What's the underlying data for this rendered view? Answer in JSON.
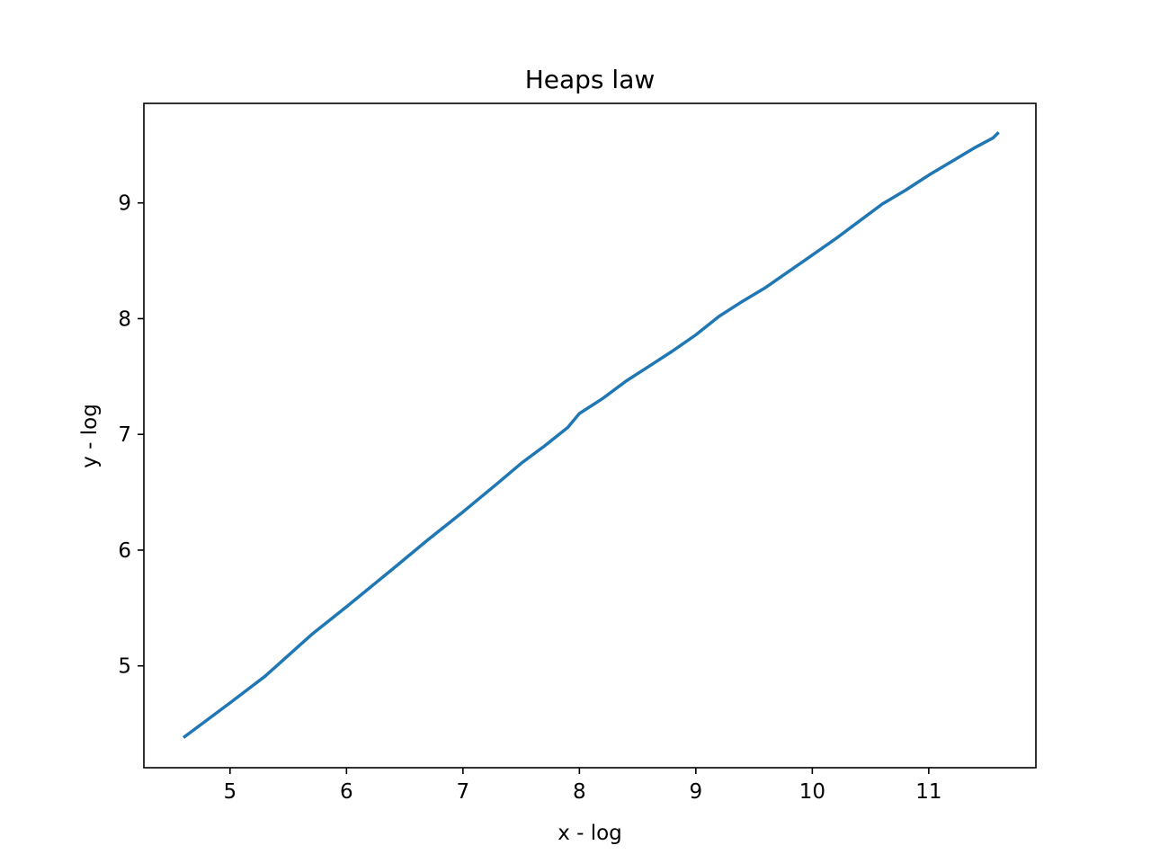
{
  "chart_data": {
    "type": "line",
    "title": "Heaps law",
    "xlabel": "x - log",
    "ylabel": "y - log",
    "xlim": [
      4.26,
      11.92
    ],
    "ylim": [
      4.12,
      9.86
    ],
    "xticks": [
      5,
      6,
      7,
      8,
      9,
      10,
      11
    ],
    "yticks": [
      5,
      6,
      7,
      8,
      9
    ],
    "grid": false,
    "line_color": "#1f77b4",
    "series": [
      {
        "x": [
          4.6,
          5.0,
          5.3,
          5.7,
          6.0,
          6.4,
          6.7,
          7.0,
          7.3,
          7.5,
          7.7,
          7.9,
          8.0,
          8.2,
          8.4,
          8.6,
          8.8,
          9.0,
          9.2,
          9.4,
          9.6,
          9.8,
          10.0,
          10.2,
          10.4,
          10.6,
          10.8,
          11.0,
          11.2,
          11.4,
          11.55,
          11.6
        ],
        "y": [
          4.38,
          4.68,
          4.91,
          5.27,
          5.51,
          5.84,
          6.09,
          6.33,
          6.58,
          6.75,
          6.9,
          7.06,
          7.18,
          7.31,
          7.46,
          7.59,
          7.72,
          7.86,
          8.02,
          8.15,
          8.27,
          8.41,
          8.55,
          8.69,
          8.84,
          8.99,
          9.11,
          9.24,
          9.36,
          9.48,
          9.56,
          9.61
        ]
      }
    ]
  }
}
